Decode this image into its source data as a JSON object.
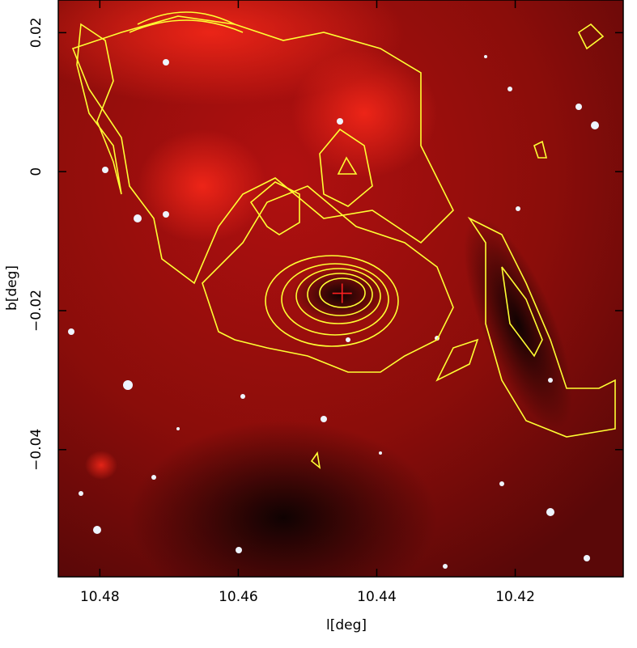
{
  "chart_data": {
    "type": "image",
    "xlabel": "l[deg]",
    "ylabel": "b[deg]",
    "xlim": [
      10.486,
      10.4044
    ],
    "ylim": [
      -0.0583,
      0.0247
    ],
    "xticks": [
      10.48,
      10.46,
      10.44,
      10.42
    ],
    "yticks": [
      {
        "value": -0.04,
        "label": "−0.04"
      },
      {
        "value": -0.02,
        "label": "−0.02"
      },
      0,
      0.02
    ],
    "marker": {
      "x": 10.445,
      "y": -0.0175,
      "color": "#ff2020"
    },
    "contour_color": "#ffff33"
  }
}
